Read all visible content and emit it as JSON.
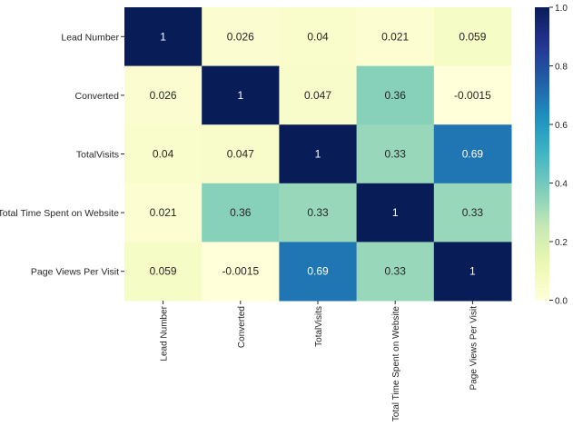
{
  "chart_data": {
    "type": "heatmap",
    "title": "",
    "xlabel": "",
    "ylabel": "",
    "x_categories": [
      "Lead Number",
      "Converted",
      "TotalVisits",
      "Total Time Spent on Website",
      "Page Views Per Visit"
    ],
    "y_categories": [
      "Lead Number",
      "Converted",
      "TotalVisits",
      "Total Time Spent on Website",
      "Page Views Per Visit"
    ],
    "values": [
      [
        1,
        0.026,
        0.04,
        0.021,
        0.059
      ],
      [
        0.026,
        1,
        0.047,
        0.36,
        -0.0015
      ],
      [
        0.04,
        0.047,
        1,
        0.33,
        0.69
      ],
      [
        0.021,
        0.36,
        0.33,
        1,
        0.33
      ],
      [
        0.059,
        -0.0015,
        0.69,
        0.33,
        1
      ]
    ],
    "annotations": [
      [
        "1",
        "0.026",
        "0.04",
        "0.021",
        "0.059"
      ],
      [
        "0.026",
        "1",
        "0.047",
        "0.36",
        "-0.0015"
      ],
      [
        "0.04",
        "0.047",
        "1",
        "0.33",
        "0.69"
      ],
      [
        "0.021",
        "0.36",
        "0.33",
        "1",
        "0.33"
      ],
      [
        "0.059",
        "-0.0015",
        "0.69",
        "0.33",
        "1"
      ]
    ],
    "colormap": "YlGnBu",
    "color_range": [
      -0.0015,
      1
    ],
    "colorbar": {
      "ticks": [
        "0.0",
        "0.2",
        "0.4",
        "0.6",
        "0.8",
        "1.0"
      ],
      "tick_values": [
        0,
        0.2,
        0.4,
        0.6,
        0.8,
        1.0
      ]
    },
    "legend": "colorbar-right"
  }
}
